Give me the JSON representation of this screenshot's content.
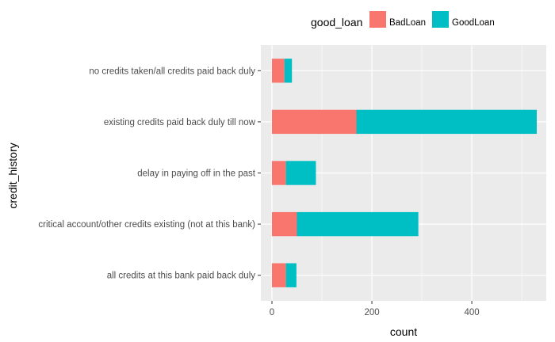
{
  "chart_data": {
    "type": "bar",
    "orientation": "horizontal",
    "stacked": true,
    "categories": [
      "no credits taken/all credits paid back duly",
      "existing credits paid back duly till now",
      "delay in paying off in the past",
      "critical account/other credits existing (not at this bank)",
      "all credits at this bank paid back duly"
    ],
    "series": [
      {
        "name": "BadLoan",
        "color": "#F8766D",
        "values": [
          25,
          169,
          28,
          50,
          28
        ]
      },
      {
        "name": "GoodLoan",
        "color": "#00BFC4",
        "values": [
          15,
          361,
          60,
          243,
          21
        ]
      }
    ],
    "xlabel": "count",
    "ylabel": "credit_history",
    "xlim": [
      0,
      530
    ],
    "xticks": [
      0,
      200,
      400
    ],
    "xtick_labels": [
      "0",
      "200",
      "400"
    ],
    "legend": {
      "title": "good_loan",
      "position": "top",
      "labels": [
        "BadLoan",
        "GoodLoan"
      ]
    },
    "grid": true,
    "panel_background": "#EBEBEB",
    "grid_color": "#FFFFFF"
  }
}
